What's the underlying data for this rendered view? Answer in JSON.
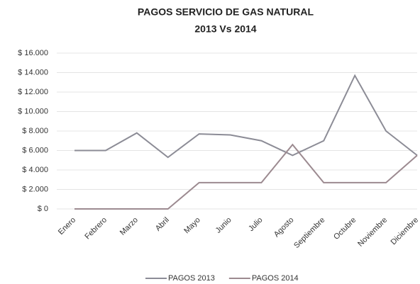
{
  "chart_data": {
    "type": "line",
    "title": "PAGOS  SERVICIO DE GAS NATURAL",
    "subtitle": "2013 Vs 2014",
    "categories": [
      "Enero",
      "Febrero",
      "Marzo",
      "Abril",
      "Mayo",
      "Junio",
      "Julio",
      "Agosto",
      "Septiembre",
      "Octubre",
      "Noviembre",
      "Diciembre"
    ],
    "series": [
      {
        "name": "PAGOS 2013",
        "color": "#8c8c96",
        "values": [
          6000,
          6000,
          7800,
          5300,
          7700,
          7600,
          7000,
          5500,
          7000,
          13700,
          8000,
          5500
        ]
      },
      {
        "name": "PAGOS 2014",
        "color": "#9c8a90",
        "values": [
          0,
          0,
          0,
          0,
          2700,
          2700,
          2700,
          6600,
          2700,
          2700,
          2700,
          5500
        ]
      }
    ],
    "ylim": [
      0,
      16000
    ],
    "yticks": [
      {
        "value": 0,
        "label": "$ 0"
      },
      {
        "value": 2000,
        "label": "$ 2.000"
      },
      {
        "value": 4000,
        "label": "$ 4.000"
      },
      {
        "value": 6000,
        "label": "$ 6.000"
      },
      {
        "value": 8000,
        "label": "$ 8.000"
      },
      {
        "value": 10000,
        "label": "$ 10.000"
      },
      {
        "value": 12000,
        "label": "$ 12.000"
      },
      {
        "value": 14000,
        "label": "$ 14.000"
      },
      {
        "value": 16000,
        "label": "$ 16.000"
      }
    ],
    "grid": true,
    "legend": "bottom"
  }
}
